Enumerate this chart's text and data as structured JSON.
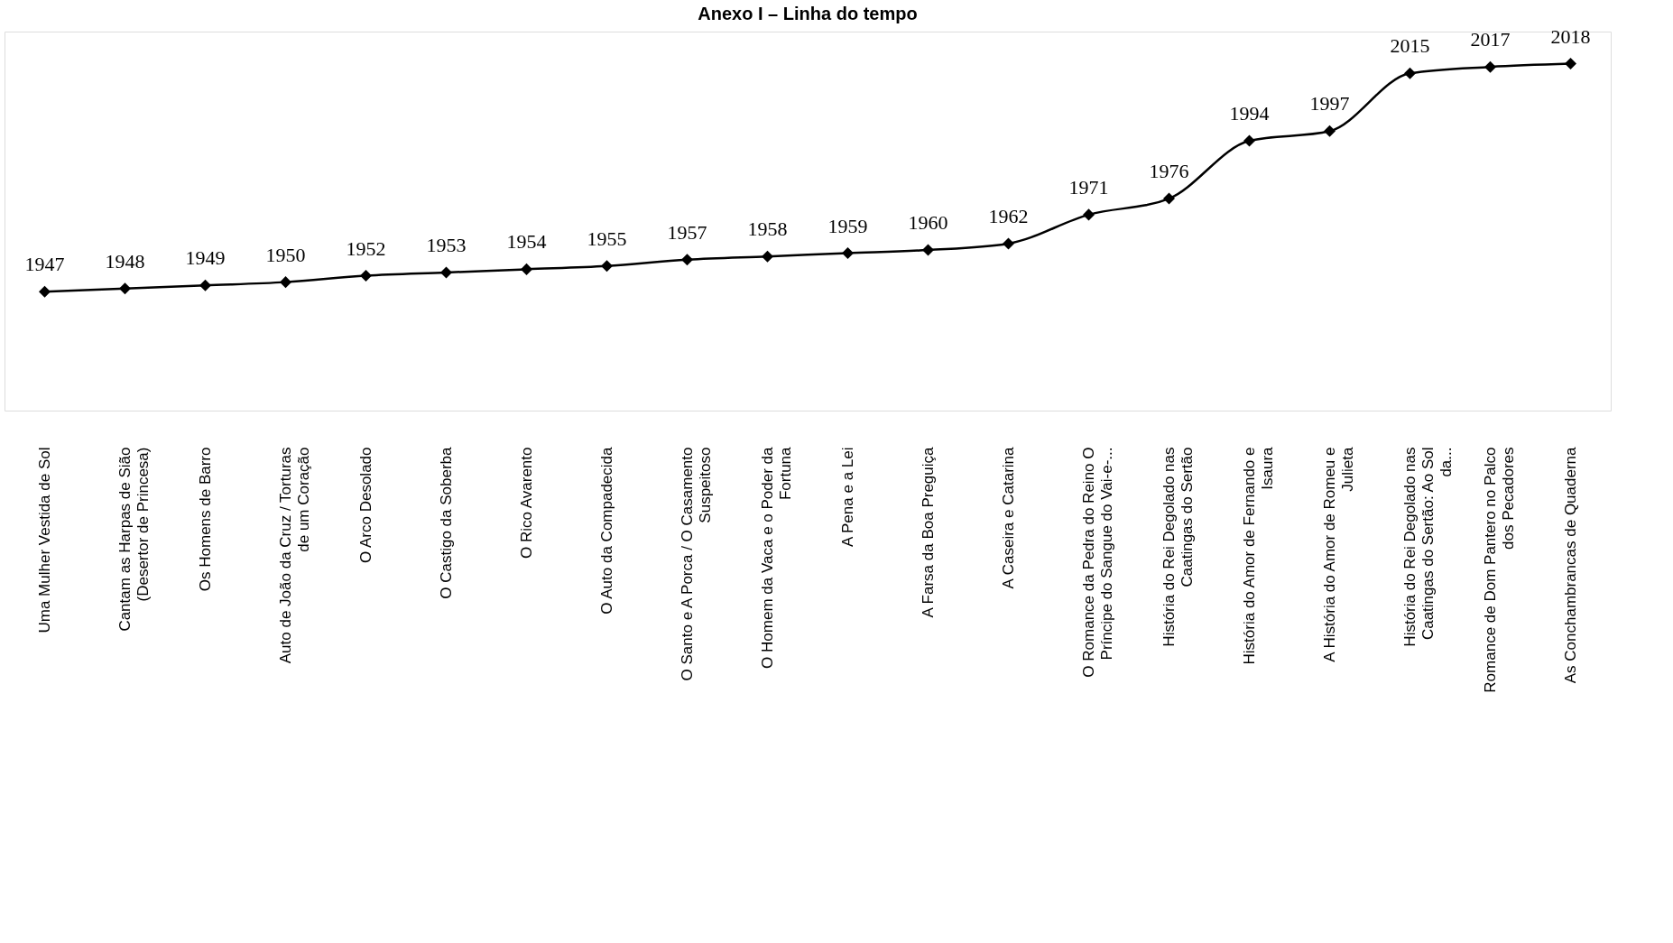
{
  "chart_data": {
    "type": "line",
    "title": "Anexo I – Linha do tempo",
    "categories": [
      "Uma Mulher Vestida de Sol",
      "Cantam as Harpas de Sião (Desertor de Princesa)",
      "Os Homens de Barro",
      "Auto de João da Cruz / Torturas de um Coração",
      "O Arco Desolado",
      "O Castigo da Soberba",
      "O Rico Avarento",
      "O Auto da Compadecida",
      "O Santo e A Porca / O Casamento Suspeitoso",
      "O Homem da Vaca e o Poder da Fortuna",
      "A Pena e a Lei",
      "A Farsa da Boa Preguiça",
      "A Caseira e  Catarina",
      "O Romance da Pedra do Reino O Príncipe do Sangue do Vai-e-...",
      "História do Rei Degolado nas Caatingas do Sertão",
      "História do Amor de Fernando e Isaura",
      "A História do Amor de Romeu e Julieta",
      "História do Rei Degolado nas Caatingas do Sertão: Ao Sol da...",
      "Romance de Dom Pantero no Palco dos Pecadores",
      "As Conchambrancas de Quaderna"
    ],
    "series": [
      {
        "color": "#000000",
        "values": [
          1947,
          1948,
          1949,
          1950,
          1952,
          1953,
          1954,
          1955,
          1957,
          1958,
          1959,
          1960,
          1962,
          1971,
          1976,
          1994,
          1997,
          2015,
          2017,
          2018
        ]
      }
    ],
    "ylim": [
      1910,
      2028
    ],
    "tick_labels": "x",
    "data_labels": true,
    "marker": "diamond",
    "line_style": "solid",
    "grid": false
  }
}
